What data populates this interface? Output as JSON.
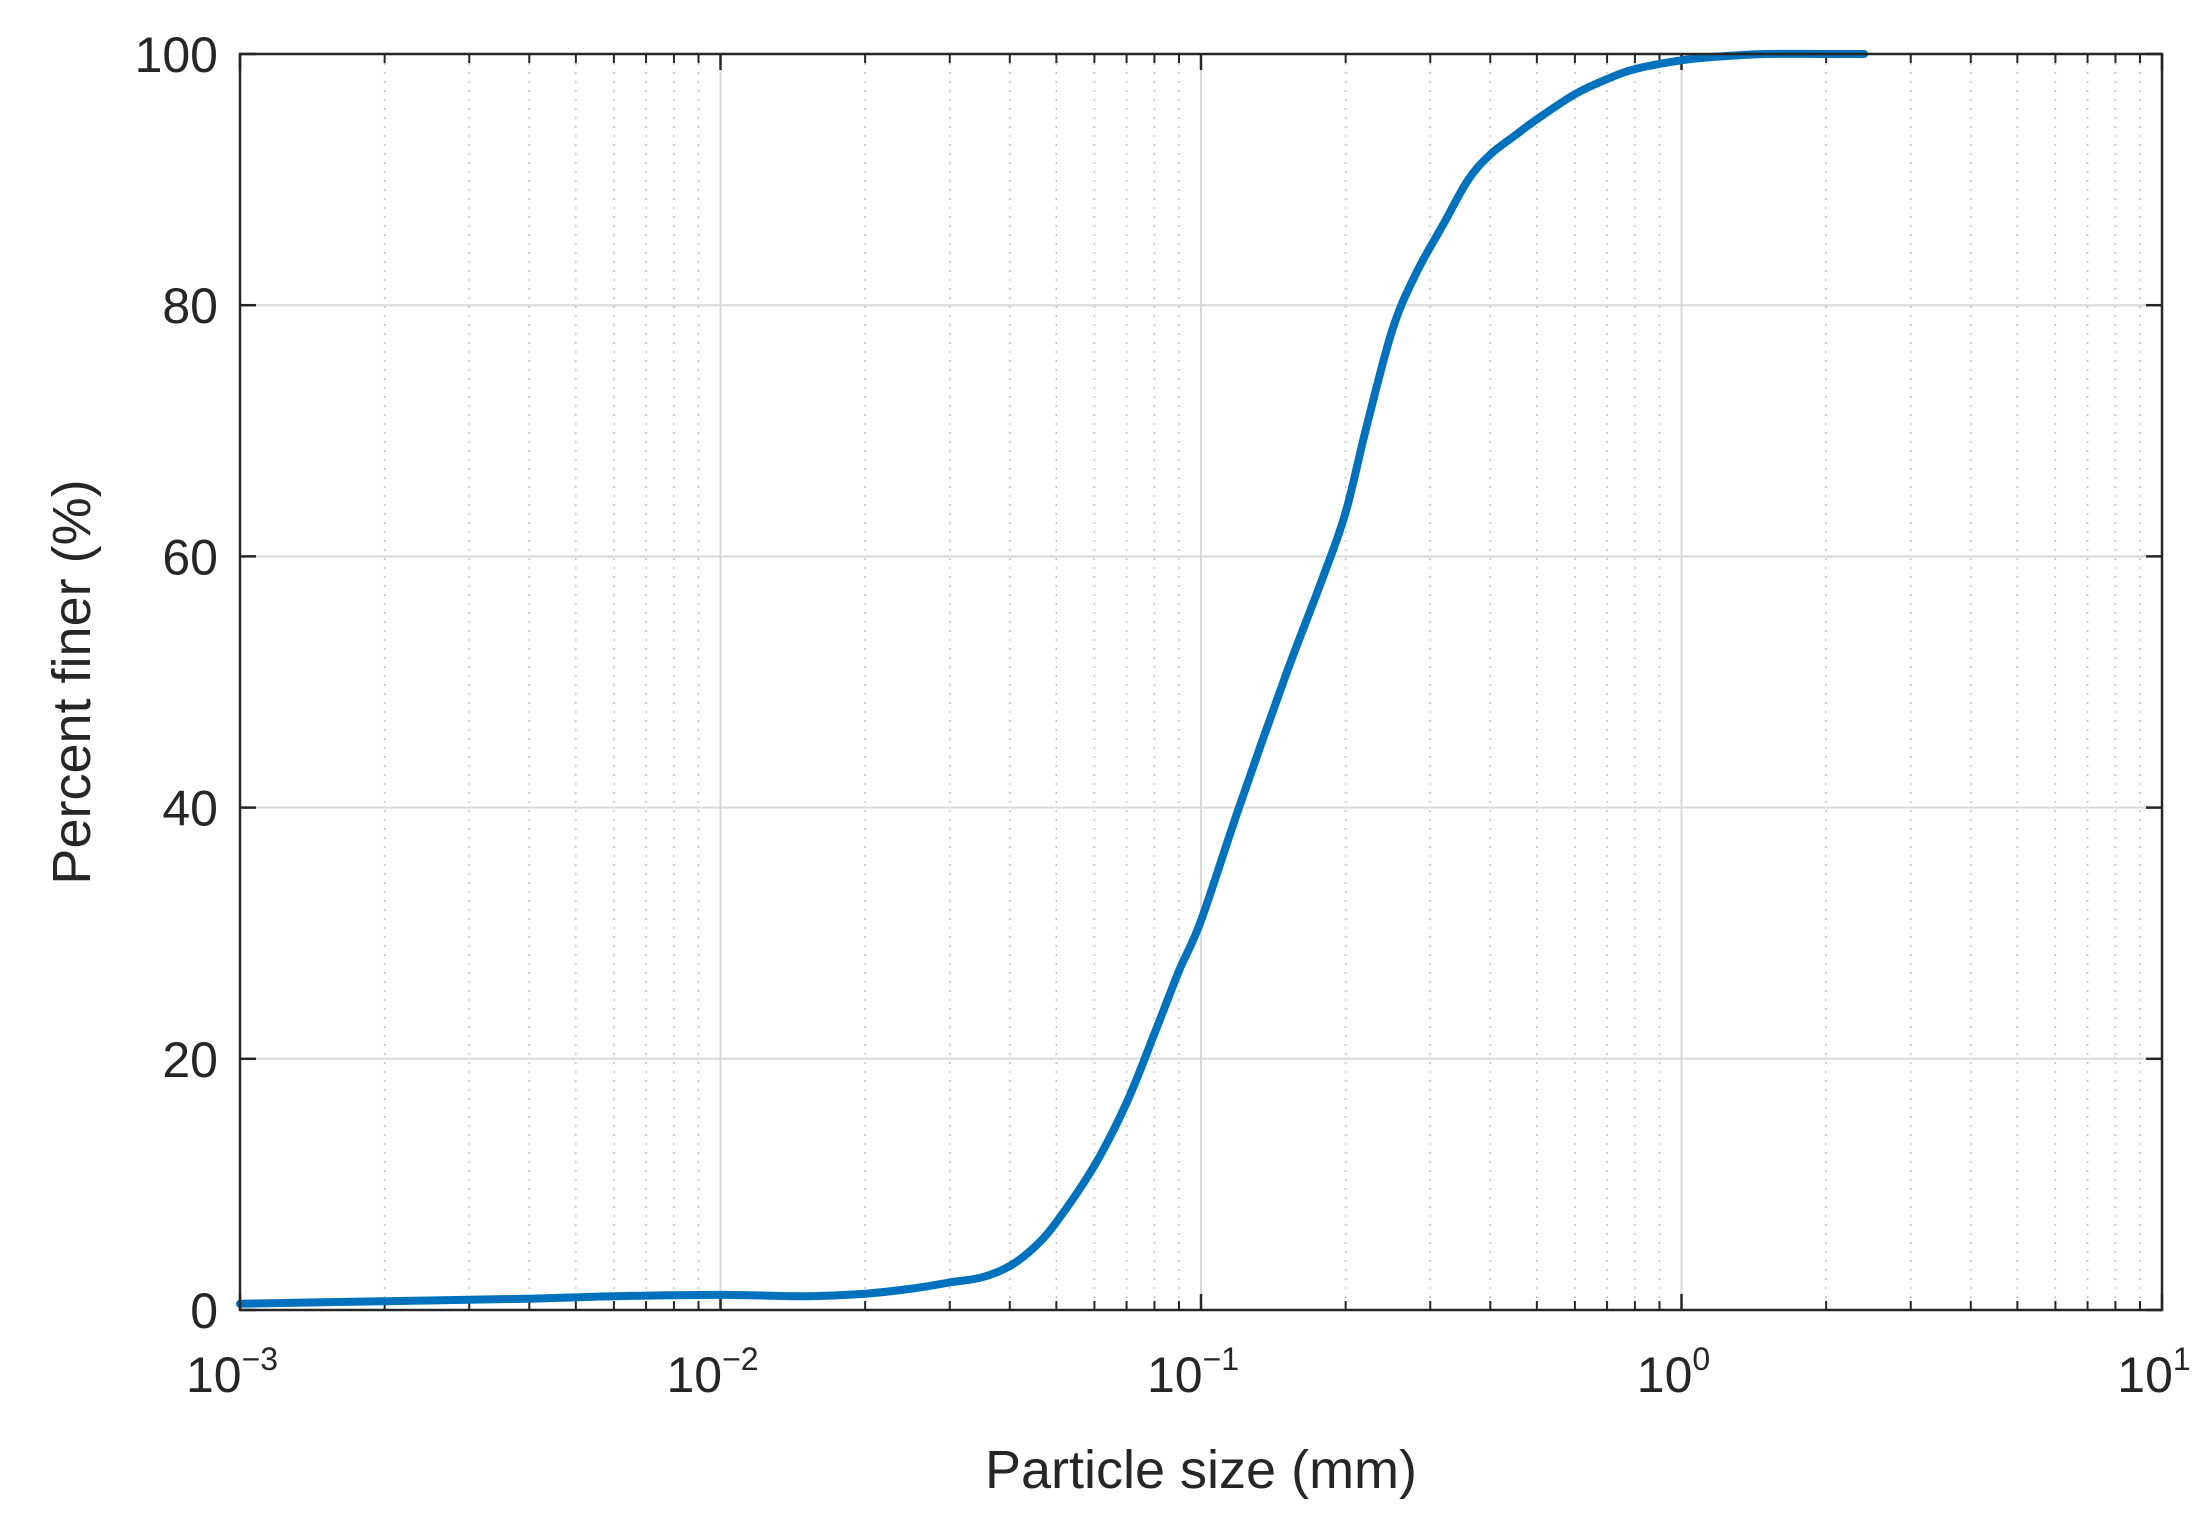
{
  "chart_data": {
    "type": "line",
    "xlabel": "Particle size (mm)",
    "ylabel": "Percent finer (%)",
    "xscale": "log",
    "xlim": [
      0.001,
      10
    ],
    "ylim": [
      0,
      100
    ],
    "x_tick_labels": [
      {
        "value": 0.001,
        "base": "10",
        "exp": "−3"
      },
      {
        "value": 0.01,
        "base": "10",
        "exp": "−2"
      },
      {
        "value": 0.1,
        "base": "10",
        "exp": "−1"
      },
      {
        "value": 1,
        "base": "10",
        "exp": "0"
      },
      {
        "value": 10,
        "base": "10",
        "exp": "1"
      }
    ],
    "y_tick_labels": [
      "0",
      "20",
      "40",
      "60",
      "80",
      "100"
    ],
    "y_ticks": [
      0,
      20,
      40,
      60,
      80,
      100
    ],
    "grid": true,
    "minor_grid": true,
    "line_color": "#0072BD",
    "series": [
      {
        "x": [
          0.001,
          0.002,
          0.004,
          0.006,
          0.01,
          0.015,
          0.02,
          0.025,
          0.03,
          0.035,
          0.04,
          0.045,
          0.05,
          0.06,
          0.07,
          0.08,
          0.09,
          0.1,
          0.12,
          0.15,
          0.18,
          0.2,
          0.22,
          0.25,
          0.28,
          0.32,
          0.36,
          0.4,
          0.45,
          0.5,
          0.6,
          0.7,
          0.8,
          1.0,
          1.2,
          1.5,
          2.0,
          2.4
        ],
        "y": [
          0.5,
          0.7,
          0.9,
          1.1,
          1.2,
          1.1,
          1.3,
          1.7,
          2.2,
          2.6,
          3.5,
          5.0,
          7.0,
          11.5,
          16.5,
          22.0,
          27.0,
          31.0,
          40.0,
          50.5,
          58.5,
          63.5,
          70.0,
          78.0,
          82.5,
          86.5,
          90.0,
          92.0,
          93.5,
          94.8,
          96.8,
          98.0,
          98.8,
          99.5,
          99.8,
          100.0,
          100.0,
          100.0
        ]
      }
    ]
  }
}
